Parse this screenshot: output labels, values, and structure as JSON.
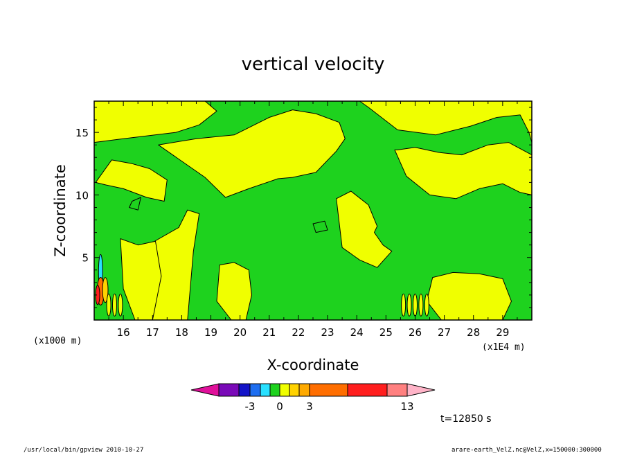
{
  "chart_data": {
    "type": "heatmap",
    "title": "vertical velocity",
    "xlabel": "X-coordinate",
    "ylabel": "Z-coordinate",
    "x_unit": "(x1E4 m)",
    "y_unit": "(x1000 m)",
    "xlim": [
      15.0,
      30.0
    ],
    "ylim": [
      0.0,
      17.5
    ],
    "x_ticks": [
      16,
      17,
      18,
      19,
      20,
      21,
      22,
      23,
      24,
      25,
      26,
      27,
      28,
      29
    ],
    "y_ticks": [
      5,
      10,
      15
    ],
    "colorbar": {
      "colors": [
        "#e0109a",
        "#7a0ab8",
        "#1414c8",
        "#1e6ef0",
        "#28e0ff",
        "#1ed21e",
        "#f0ff00",
        "#ffd200",
        "#ffaa00",
        "#ff6e00",
        "#ff1e1e",
        "#ff8080",
        "#ffb4c8"
      ],
      "labels": [
        "-3",
        "0",
        "3",
        "13"
      ]
    },
    "time_label": "t=12850 s",
    "regions": [
      {
        "fill": "yellow",
        "x": [
          15.05,
          15.6,
          16.3,
          16.9,
          17.5,
          17.4,
          16.8,
          16.0,
          15.4,
          15.05
        ],
        "y": [
          11.0,
          12.8,
          12.5,
          12.1,
          11.2,
          9.5,
          9.8,
          10.5,
          10.8,
          11.0
        ]
      },
      {
        "fill": "yellow",
        "x": [
          15.0,
          15.0,
          16.0,
          17.2,
          18.8,
          19.2,
          18.6,
          17.8,
          16.0
        ],
        "y": [
          14.2,
          17.5,
          17.5,
          17.5,
          17.5,
          16.7,
          15.6,
          15.0,
          14.5
        ]
      },
      {
        "fill": "yellow",
        "x": [
          17.2,
          18.5,
          19.8,
          21.0,
          21.8,
          22.6,
          23.4,
          23.6,
          23.3,
          22.6,
          21.8,
          21.3,
          20.3,
          19.5,
          18.8
        ],
        "y": [
          14.0,
          14.5,
          14.8,
          16.2,
          16.8,
          16.5,
          15.8,
          14.5,
          13.5,
          11.8,
          11.4,
          11.3,
          10.5,
          9.8,
          11.4
        ]
      },
      {
        "fill": "yellow",
        "x": [
          23.1,
          23.5,
          24.1,
          24.4,
          25.4,
          26.7,
          27.9,
          28.8,
          29.6,
          29.9,
          30.0,
          30.0,
          29.2,
          28.0,
          26.7,
          25.5,
          24.2
        ],
        "y": [
          17.5,
          17.5,
          17.5,
          17.0,
          15.2,
          14.8,
          15.5,
          16.2,
          16.4,
          15.0,
          14.2,
          17.5,
          17.5,
          17.5,
          17.5,
          17.5,
          17.5
        ]
      },
      {
        "fill": "yellow",
        "x": [
          25.3,
          25.7,
          26.5,
          27.4,
          28.2,
          29.0,
          29.6,
          30.0,
          30.0,
          29.2,
          28.5,
          27.6,
          26.8,
          26.0,
          25.4
        ],
        "y": [
          13.6,
          11.5,
          10.0,
          9.7,
          10.5,
          10.9,
          10.2,
          10.0,
          13.2,
          14.2,
          14.0,
          13.2,
          13.4,
          13.8,
          13.6
        ]
      },
      {
        "fill": "yellow",
        "x": [
          23.3,
          23.8,
          24.4,
          24.7,
          24.6,
          24.9,
          25.2,
          24.7,
          24.1,
          23.5,
          23.3
        ],
        "y": [
          9.7,
          10.3,
          9.2,
          7.5,
          7.0,
          6.0,
          5.5,
          4.2,
          4.8,
          5.8,
          9.7
        ]
      },
      {
        "fill": "yellow",
        "x": [
          17.0,
          17.9,
          18.2,
          18.6,
          18.4,
          18.2,
          17.6,
          17.0,
          16.6
        ],
        "y": [
          6.2,
          7.4,
          8.8,
          8.5,
          5.5,
          0.0,
          0.0,
          0.0,
          3.0
        ]
      },
      {
        "fill": "yellow",
        "x": [
          15.9,
          16.5,
          17.1,
          17.3,
          17.0,
          16.4,
          16.0
        ],
        "y": [
          6.5,
          6.0,
          6.3,
          3.5,
          0.0,
          0.0,
          2.5
        ]
      },
      {
        "fill": "yellow",
        "x": [
          19.3,
          19.8,
          20.3,
          20.4,
          20.2,
          19.7,
          19.2
        ],
        "y": [
          4.4,
          4.6,
          4.0,
          2.0,
          0.0,
          0.0,
          1.5
        ]
      },
      {
        "fill": "yellow",
        "x": [
          26.6,
          27.3,
          28.2,
          29.0,
          29.3,
          29.0,
          28.0,
          26.9,
          26.4
        ],
        "y": [
          3.4,
          3.8,
          3.7,
          3.3,
          1.5,
          0.0,
          0.0,
          0.0,
          1.5
        ]
      },
      {
        "fill": "green",
        "x": [
          16.3,
          16.6,
          16.5,
          16.2
        ],
        "y": [
          9.5,
          9.8,
          8.8,
          9.0
        ]
      },
      {
        "fill": "green",
        "x": [
          22.5,
          22.9,
          23.0,
          22.6
        ],
        "y": [
          7.7,
          7.9,
          7.2,
          7.0
        ]
      }
    ]
  },
  "footer": {
    "left": "/usr/local/bin/gpview  2010-10-27",
    "right": "arare-earth_VelZ.nc@VelZ,x=150000:300000"
  }
}
